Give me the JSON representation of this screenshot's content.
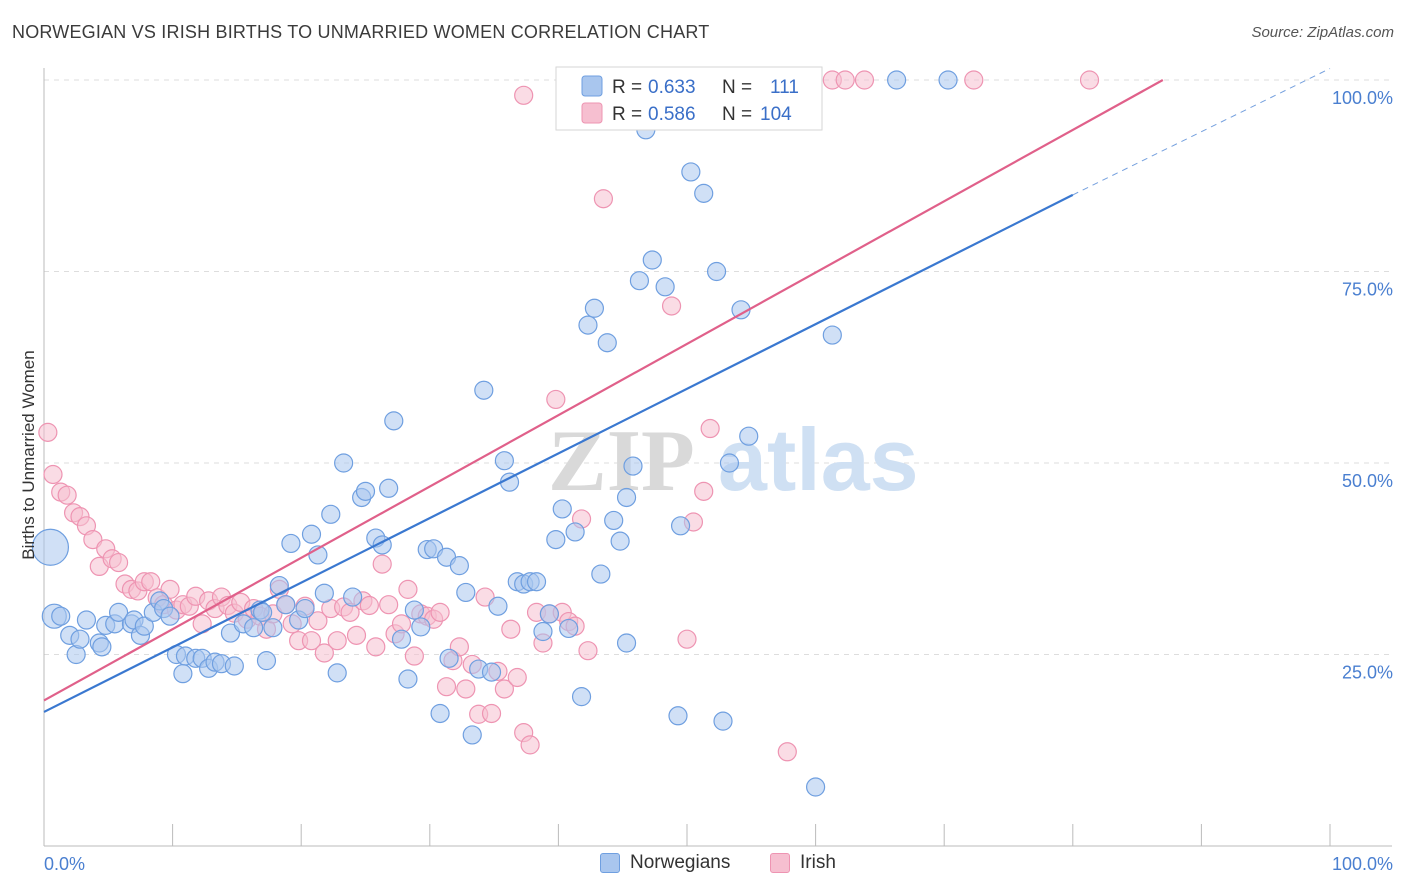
{
  "title": "NORWEGIAN VS IRISH BIRTHS TO UNMARRIED WOMEN CORRELATION CHART",
  "source": "Source: ZipAtlas.com",
  "watermark": {
    "part1": "ZIP",
    "part2": "atlas"
  },
  "legend": {
    "rows": [
      {
        "r_label": "R =",
        "r_value": "0.633",
        "n_label": "N =",
        "n_value": "111"
      },
      {
        "r_label": "R =",
        "r_value": "0.586",
        "n_label": "N =",
        "n_value": "104"
      }
    ]
  },
  "bottom_legend": [
    "Norwegians",
    "Irish"
  ],
  "colors": {
    "norwegians_fill": "#a9c6ee",
    "norwegians_stroke": "#6f9fe0",
    "norwegians_line": "#3a78d0",
    "irish_fill": "#f6bfd0",
    "irish_stroke": "#ee94b2",
    "irish_line": "#e0608a",
    "tick_text": "#4a7fd0",
    "grid": "#dddddd"
  },
  "chart_data": {
    "type": "scatter",
    "title": "NORWEGIAN VS IRISH BIRTHS TO UNMARRIED WOMEN CORRELATION CHART",
    "xlabel": "",
    "ylabel": "Births to Unmarried Women",
    "xlim": [
      0,
      100
    ],
    "ylim": [
      0,
      105
    ],
    "x_tick_labels": [
      "0.0%",
      "100.0%"
    ],
    "y_ticks": [
      25,
      50,
      75,
      100
    ],
    "y_tick_labels": [
      "25.0%",
      "50.0%",
      "75.0%",
      "100.0%"
    ],
    "grid": "horizontal dashed",
    "legend_position": "top-center",
    "series": [
      {
        "name": "Norwegians",
        "r": 0.633,
        "n": 111,
        "trend": {
          "x0": 0,
          "y0": 17.5,
          "x1": 80,
          "y1": 85,
          "dashed_to": [
            100,
            101.5
          ]
        },
        "points": [
          [
            0.5,
            39,
            3
          ],
          [
            0.8,
            30,
            2
          ],
          [
            1.3,
            30,
            1
          ],
          [
            2,
            27.5,
            1
          ],
          [
            2.5,
            25,
            1
          ],
          [
            2.8,
            27,
            1
          ],
          [
            3.3,
            29.5,
            1
          ],
          [
            4.3,
            26.5,
            1
          ],
          [
            4.5,
            26,
            1
          ],
          [
            4.8,
            28.8,
            1
          ],
          [
            5.5,
            29,
            1
          ],
          [
            5.8,
            30.5,
            1
          ],
          [
            6.8,
            29,
            1
          ],
          [
            7,
            29.5,
            1
          ],
          [
            7.5,
            27.5,
            1
          ],
          [
            7.8,
            28.7,
            1
          ],
          [
            8.5,
            30.5,
            1
          ],
          [
            9,
            32,
            1
          ],
          [
            9.3,
            31,
            1
          ],
          [
            9.8,
            30,
            1
          ],
          [
            10.3,
            25,
            1
          ],
          [
            10.8,
            22.5,
            1
          ],
          [
            11,
            24.8,
            1
          ],
          [
            11.8,
            24.5,
            1
          ],
          [
            12.3,
            24.5,
            1
          ],
          [
            12.8,
            23.2,
            1
          ],
          [
            13.3,
            24,
            1
          ],
          [
            13.8,
            23.8,
            1
          ],
          [
            14.5,
            27.8,
            1
          ],
          [
            14.8,
            23.5,
            1
          ],
          [
            15.5,
            29,
            1
          ],
          [
            16.3,
            28.5,
            1
          ],
          [
            16.8,
            30.8,
            1
          ],
          [
            17,
            30.5,
            1
          ],
          [
            17.3,
            24.2,
            1
          ],
          [
            17.8,
            28.5,
            1
          ],
          [
            18.3,
            34,
            1
          ],
          [
            18.8,
            31.5,
            1
          ],
          [
            19.2,
            39.5,
            1
          ],
          [
            19.8,
            29.5,
            1
          ],
          [
            20.3,
            31,
            1
          ],
          [
            20.8,
            40.7,
            1
          ],
          [
            21.3,
            38,
            1
          ],
          [
            21.8,
            33,
            1
          ],
          [
            22.3,
            43.3,
            1
          ],
          [
            22.8,
            22.6,
            1
          ],
          [
            23.3,
            50,
            1
          ],
          [
            24,
            32.5,
            1
          ],
          [
            24.7,
            45.5,
            1
          ],
          [
            25,
            46.3,
            1
          ],
          [
            25.8,
            40.2,
            1
          ],
          [
            26.3,
            39.3,
            1
          ],
          [
            26.8,
            46.7,
            1
          ],
          [
            27.2,
            55.5,
            1
          ],
          [
            27.8,
            27,
            1
          ],
          [
            28.3,
            21.8,
            1
          ],
          [
            28.8,
            30.8,
            1
          ],
          [
            29.3,
            28.6,
            1
          ],
          [
            29.8,
            38.7,
            1
          ],
          [
            30.3,
            38.8,
            1
          ],
          [
            30.8,
            17.3,
            1
          ],
          [
            31.3,
            37.7,
            1
          ],
          [
            31.5,
            24.5,
            1
          ],
          [
            32.3,
            36.6,
            1
          ],
          [
            32.8,
            33.1,
            1
          ],
          [
            33.3,
            14.5,
            1
          ],
          [
            33.8,
            23.1,
            1
          ],
          [
            34.2,
            59.5,
            1
          ],
          [
            34.8,
            22.7,
            1
          ],
          [
            35.3,
            31.3,
            1
          ],
          [
            35.8,
            50.3,
            1
          ],
          [
            36.2,
            47.5,
            1
          ],
          [
            36.8,
            34.5,
            1
          ],
          [
            37.3,
            34.2,
            1
          ],
          [
            37.8,
            34.5,
            1
          ],
          [
            38.3,
            34.5,
            1
          ],
          [
            38.8,
            28,
            1
          ],
          [
            39.3,
            30.3,
            1
          ],
          [
            39.8,
            40,
            1
          ],
          [
            40.3,
            44,
            1
          ],
          [
            40.8,
            28.4,
            1
          ],
          [
            41.3,
            41,
            1
          ],
          [
            41.8,
            19.5,
            1
          ],
          [
            42.3,
            68,
            1
          ],
          [
            42.8,
            70.2,
            1
          ],
          [
            43.3,
            35.5,
            1
          ],
          [
            43.8,
            65.7,
            1
          ],
          [
            44.3,
            42.5,
            1
          ],
          [
            44.8,
            39.8,
            1
          ],
          [
            45.3,
            26.5,
            1
          ],
          [
            45.3,
            45.5,
            1
          ],
          [
            45.8,
            49.6,
            1
          ],
          [
            46.3,
            73.8,
            1
          ],
          [
            46.8,
            93.5,
            1
          ],
          [
            47.3,
            76.5,
            1
          ],
          [
            48.3,
            73,
            1
          ],
          [
            49.3,
            17,
            1
          ],
          [
            49.5,
            41.8,
            1
          ],
          [
            50.3,
            88,
            1
          ],
          [
            51.3,
            85.2,
            1
          ],
          [
            52.3,
            75,
            1
          ],
          [
            52.8,
            16.3,
            1
          ],
          [
            53.3,
            50,
            1
          ],
          [
            53.8,
            100,
            1
          ],
          [
            54.2,
            70,
            1
          ],
          [
            54.8,
            53.5,
            1
          ],
          [
            55.3,
            100,
            1
          ],
          [
            55.8,
            100,
            1
          ],
          [
            60,
            7.7,
            1
          ],
          [
            61.3,
            66.7,
            1
          ],
          [
            66.3,
            100,
            1
          ],
          [
            70.3,
            100,
            1
          ]
        ]
      },
      {
        "name": "Irish",
        "r": 0.586,
        "n": 104,
        "trend": {
          "x0": 0,
          "y0": 19,
          "x1": 87,
          "y1": 100
        },
        "points": [
          [
            0.3,
            54,
            1
          ],
          [
            0.7,
            48.5,
            1
          ],
          [
            1.3,
            46.2,
            1
          ],
          [
            1.8,
            45.8,
            1
          ],
          [
            2.3,
            43.5,
            1
          ],
          [
            2.8,
            43,
            1
          ],
          [
            3.3,
            41.8,
            1
          ],
          [
            3.8,
            40,
            1
          ],
          [
            4.3,
            36.5,
            1
          ],
          [
            4.8,
            38.8,
            1
          ],
          [
            5.3,
            37.5,
            1
          ],
          [
            5.8,
            37,
            1
          ],
          [
            6.3,
            34.2,
            1
          ],
          [
            6.8,
            33.5,
            1
          ],
          [
            7.3,
            33.3,
            1
          ],
          [
            7.8,
            34.5,
            1
          ],
          [
            8.3,
            34.5,
            1
          ],
          [
            8.8,
            32.4,
            1
          ],
          [
            9.3,
            31.5,
            1
          ],
          [
            9.8,
            33.5,
            1
          ],
          [
            10.3,
            30.8,
            1
          ],
          [
            10.8,
            31.5,
            1
          ],
          [
            11.3,
            31.3,
            1
          ],
          [
            11.8,
            32.6,
            1
          ],
          [
            12.3,
            29,
            1
          ],
          [
            12.8,
            32,
            1
          ],
          [
            13.3,
            31,
            1
          ],
          [
            13.8,
            32.5,
            1
          ],
          [
            14.3,
            31.4,
            1
          ],
          [
            14.8,
            30.4,
            1
          ],
          [
            15.3,
            31.8,
            1
          ],
          [
            15.8,
            29.6,
            1
          ],
          [
            16.3,
            31,
            1
          ],
          [
            16.8,
            30,
            1
          ],
          [
            17.3,
            28.3,
            1
          ],
          [
            17.8,
            30.3,
            1
          ],
          [
            18.3,
            33.5,
            1
          ],
          [
            18.8,
            31.5,
            1
          ],
          [
            19.3,
            29,
            1
          ],
          [
            19.8,
            26.8,
            1
          ],
          [
            20.3,
            31.3,
            1
          ],
          [
            20.8,
            26.8,
            1
          ],
          [
            21.3,
            29.4,
            1
          ],
          [
            21.8,
            25.2,
            1
          ],
          [
            22.3,
            31,
            1
          ],
          [
            22.8,
            26.8,
            1
          ],
          [
            23.3,
            31.2,
            1
          ],
          [
            23.8,
            30.5,
            1
          ],
          [
            24.3,
            27.5,
            1
          ],
          [
            24.8,
            32,
            1
          ],
          [
            25.3,
            31.4,
            1
          ],
          [
            25.8,
            26,
            1
          ],
          [
            26.3,
            36.8,
            1
          ],
          [
            26.8,
            31.5,
            1
          ],
          [
            27.3,
            27.7,
            1
          ],
          [
            27.8,
            29,
            1
          ],
          [
            28.3,
            33.5,
            1
          ],
          [
            28.8,
            24.8,
            1
          ],
          [
            29.3,
            30.3,
            1
          ],
          [
            29.8,
            30,
            1
          ],
          [
            30.3,
            29.6,
            1
          ],
          [
            30.8,
            30.5,
            1
          ],
          [
            31.3,
            20.8,
            1
          ],
          [
            31.8,
            24.2,
            1
          ],
          [
            32.3,
            26,
            1
          ],
          [
            32.8,
            20.5,
            1
          ],
          [
            33.3,
            23.7,
            1
          ],
          [
            33.8,
            17.2,
            1
          ],
          [
            34.3,
            32.5,
            1
          ],
          [
            34.8,
            17.3,
            1
          ],
          [
            35.3,
            22.8,
            1
          ],
          [
            35.8,
            20.5,
            1
          ],
          [
            36.3,
            28.3,
            1
          ],
          [
            36.8,
            22,
            1
          ],
          [
            37.3,
            14.8,
            1
          ],
          [
            37.8,
            13.2,
            1
          ],
          [
            38.3,
            30.5,
            1
          ],
          [
            38.8,
            26.5,
            1
          ],
          [
            39.3,
            30.3,
            1
          ],
          [
            39.8,
            58.3,
            1
          ],
          [
            40.3,
            30.5,
            1
          ],
          [
            40.8,
            29.3,
            1
          ],
          [
            41.3,
            28.7,
            1
          ],
          [
            41.8,
            42.7,
            1
          ],
          [
            42.3,
            25.5,
            1
          ],
          [
            42.8,
            100,
            1
          ],
          [
            43.5,
            84.5,
            1
          ],
          [
            44.8,
            100,
            1
          ],
          [
            45.5,
            100,
            1
          ],
          [
            46.5,
            100,
            1
          ],
          [
            47.5,
            100,
            1
          ],
          [
            48.8,
            70.5,
            1
          ],
          [
            48.8,
            100,
            1
          ],
          [
            50,
            27,
            1
          ],
          [
            50.5,
            42.3,
            1
          ],
          [
            51.3,
            46.3,
            1
          ],
          [
            51.8,
            54.5,
            1
          ],
          [
            52.8,
            100,
            1
          ],
          [
            55.8,
            100,
            1
          ],
          [
            57.8,
            12.3,
            1
          ],
          [
            61.3,
            100,
            1
          ],
          [
            62.3,
            100,
            1
          ],
          [
            63.8,
            100,
            1
          ],
          [
            72.3,
            100,
            1
          ],
          [
            81.3,
            100,
            1
          ],
          [
            37.3,
            98,
            1
          ]
        ]
      }
    ]
  }
}
